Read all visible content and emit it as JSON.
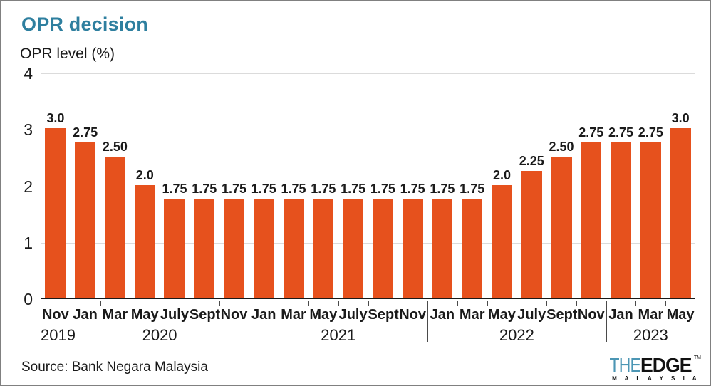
{
  "header": {
    "title": "OPR decision"
  },
  "chart_data": {
    "type": "bar",
    "title": "OPR decision",
    "ylabel": "OPR level (%)",
    "ylim": [
      0,
      4
    ],
    "yticks": [
      0,
      1,
      2,
      3,
      4
    ],
    "grid": true,
    "bar_color": "#e6511d",
    "categories": [
      "Nov 2019",
      "Jan 2020",
      "Mar 2020",
      "May 2020",
      "July 2020",
      "Sept 2020",
      "Nov 2020",
      "Jan 2021",
      "Mar 2021",
      "May 2021",
      "July 2021",
      "Sept 2021",
      "Nov 2021",
      "Jan 2022",
      "Mar 2022",
      "May 2022",
      "July 2022",
      "Sept 2022",
      "Nov 2022",
      "Jan 2023",
      "Mar 2023",
      "May 2023"
    ],
    "months": [
      "Nov",
      "Jan",
      "Mar",
      "May",
      "July",
      "Sept",
      "Nov",
      "Jan",
      "Mar",
      "May",
      "July",
      "Sept",
      "Nov",
      "Jan",
      "Mar",
      "May",
      "July",
      "Sept",
      "Nov",
      "Jan",
      "Mar",
      "May"
    ],
    "year_groups": [
      {
        "label": "2019",
        "span": 1
      },
      {
        "label": "2020",
        "span": 6
      },
      {
        "label": "2021",
        "span": 6
      },
      {
        "label": "2022",
        "span": 6
      },
      {
        "label": "2023",
        "span": 3
      }
    ],
    "values": [
      3.0,
      2.75,
      2.5,
      2.0,
      1.75,
      1.75,
      1.75,
      1.75,
      1.75,
      1.75,
      1.75,
      1.75,
      1.75,
      1.75,
      1.75,
      2.0,
      2.25,
      2.5,
      2.75,
      2.75,
      2.75,
      3.0
    ],
    "value_labels": [
      "3.0",
      "2.75",
      "2.50",
      "2.0",
      "1.75",
      "1.75",
      "1.75",
      "1.75",
      "1.75",
      "1.75",
      "1.75",
      "1.75",
      "1.75",
      "1.75",
      "1.75",
      "2.0",
      "2.25",
      "2.50",
      "2.75",
      "2.75",
      "2.75",
      "3.0"
    ]
  },
  "footer": {
    "source": "Source: Bank Negara Malaysia",
    "logo": {
      "the": "THE",
      "edge": "EDGE",
      "tm": "TM",
      "malaysia": "M A L A Y S I A"
    }
  },
  "colors": {
    "title": "#2e7f9f",
    "bar": "#e6511d",
    "gridline": "#dbdbdb",
    "logo_the": "#4c96b4"
  }
}
